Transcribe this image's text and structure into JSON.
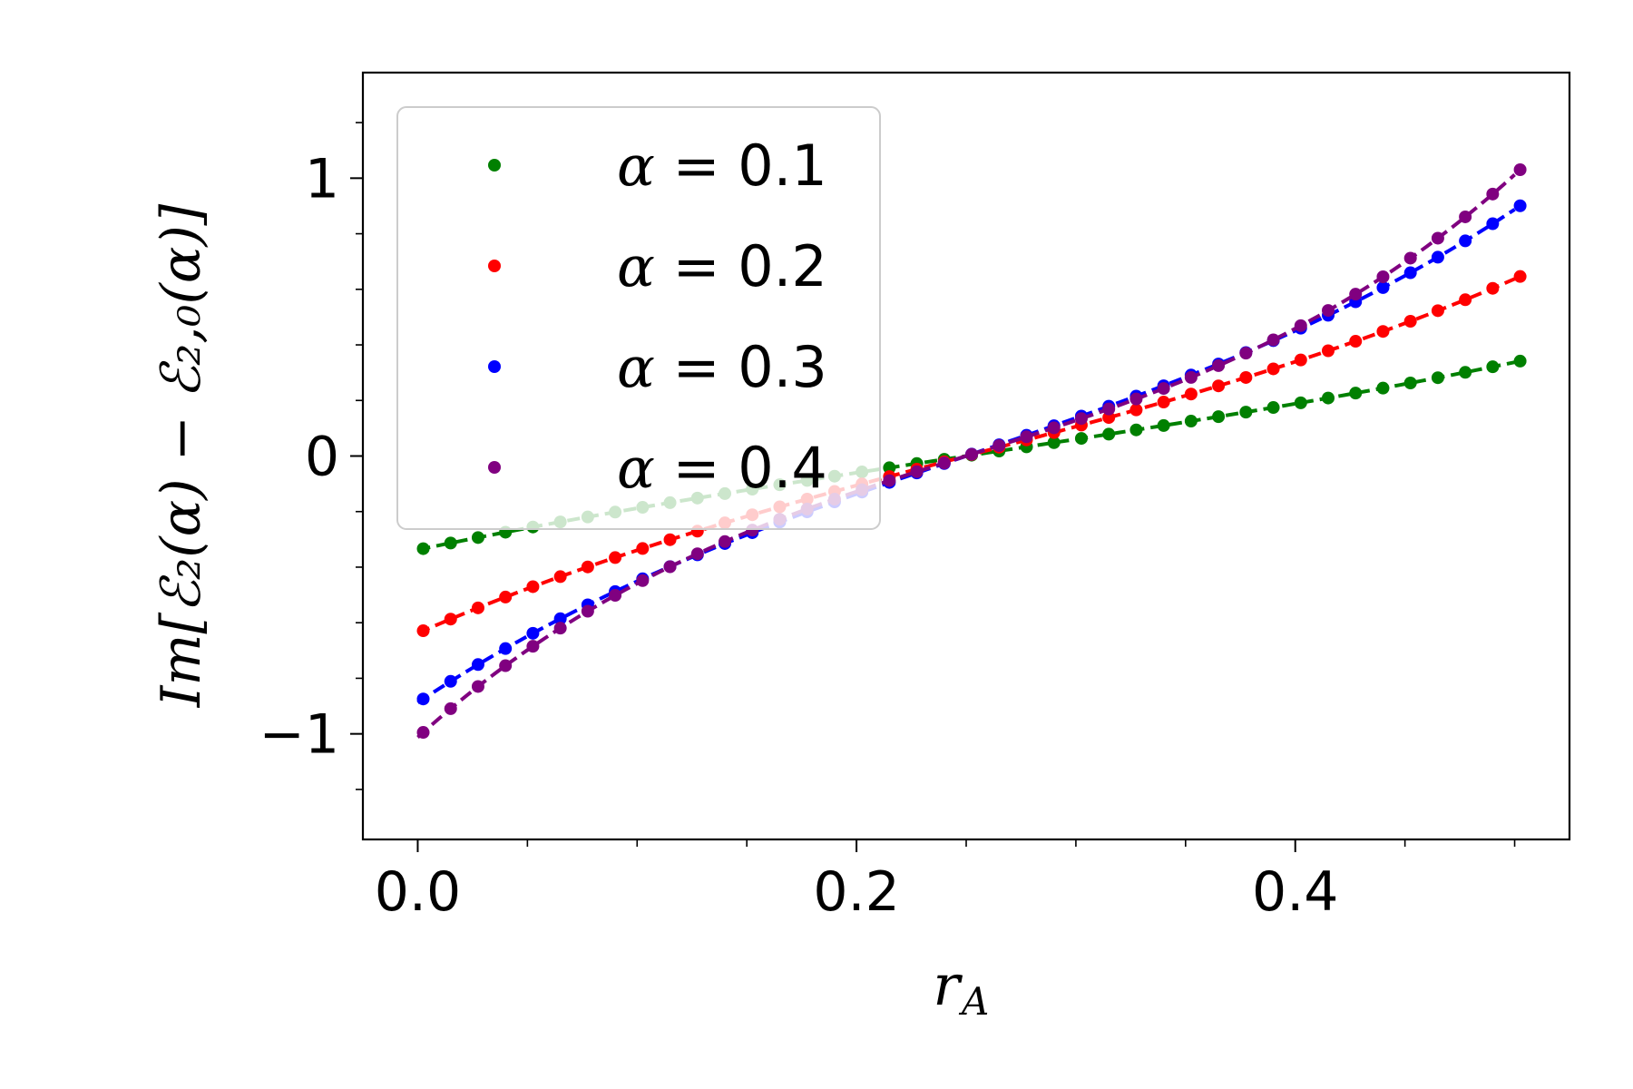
{
  "chart_data": {
    "type": "scatter",
    "xlabel_main": "r",
    "xlabel_sub": "A",
    "ylabel": "Im[ℰ₂(α) − ℰ₂,₀(α)]",
    "xlim": [
      -0.025,
      0.525
    ],
    "ylim": [
      -1.38,
      1.38
    ],
    "xticks": [
      0.0,
      0.2,
      0.4
    ],
    "xtick_labels": [
      "0.0",
      "0.2",
      "0.4"
    ],
    "yticks": [
      -1,
      0,
      1
    ],
    "ytick_labels": [
      "−1",
      "0",
      "1"
    ],
    "grid": false,
    "legend_position": "upper-left",
    "series": [
      {
        "name": "α = 0.1",
        "label_var": "α",
        "label_val": "0.1",
        "color": "#008000",
        "slope": 1.2,
        "curv": 0.3
      },
      {
        "name": "α = 0.2",
        "label_var": "α",
        "label_val": "0.2",
        "color": "#ff0000",
        "slope": 2.1,
        "curv": 0.9
      },
      {
        "name": "α = 0.3",
        "label_var": "α",
        "label_val": "0.3",
        "color": "#0000ff",
        "slope": 2.7,
        "curv": 1.7
      },
      {
        "name": "α = 0.4",
        "label_var": "α",
        "label_val": "0.4",
        "color": "#800080",
        "slope": 2.5,
        "curv": 3.1
      }
    ]
  }
}
